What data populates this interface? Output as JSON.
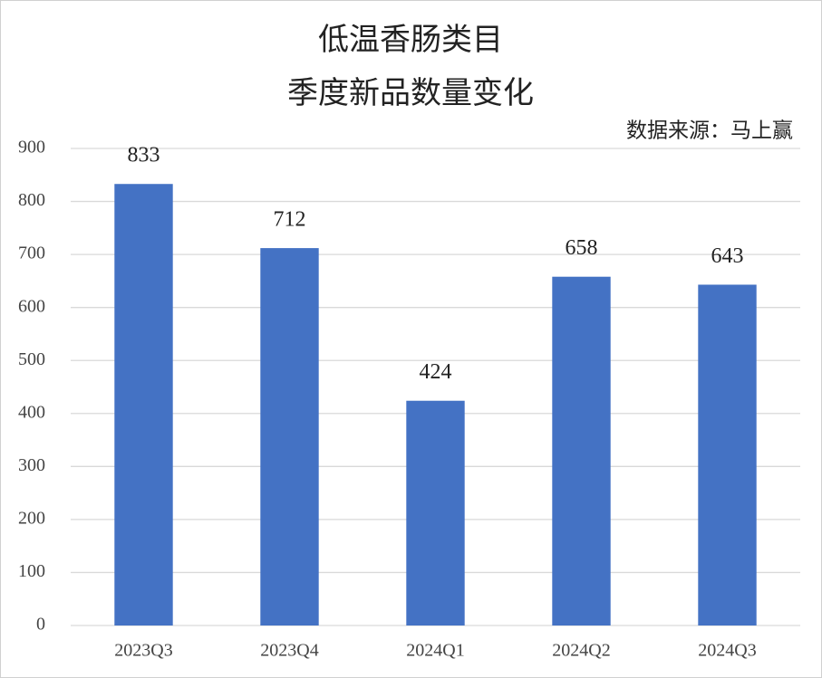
{
  "chart_data": {
    "type": "bar",
    "title": [
      "低温香肠类目",
      "季度新品数量变化"
    ],
    "source": "数据来源：马上赢",
    "categories": [
      "2023Q3",
      "2023Q4",
      "2024Q1",
      "2024Q2",
      "2024Q3"
    ],
    "values": [
      833,
      712,
      424,
      658,
      643
    ],
    "color": "#4472c4",
    "ylim": [
      0,
      900
    ],
    "yticks": [
      0,
      100,
      200,
      300,
      400,
      500,
      600,
      700,
      800,
      900
    ],
    "grid": true
  }
}
